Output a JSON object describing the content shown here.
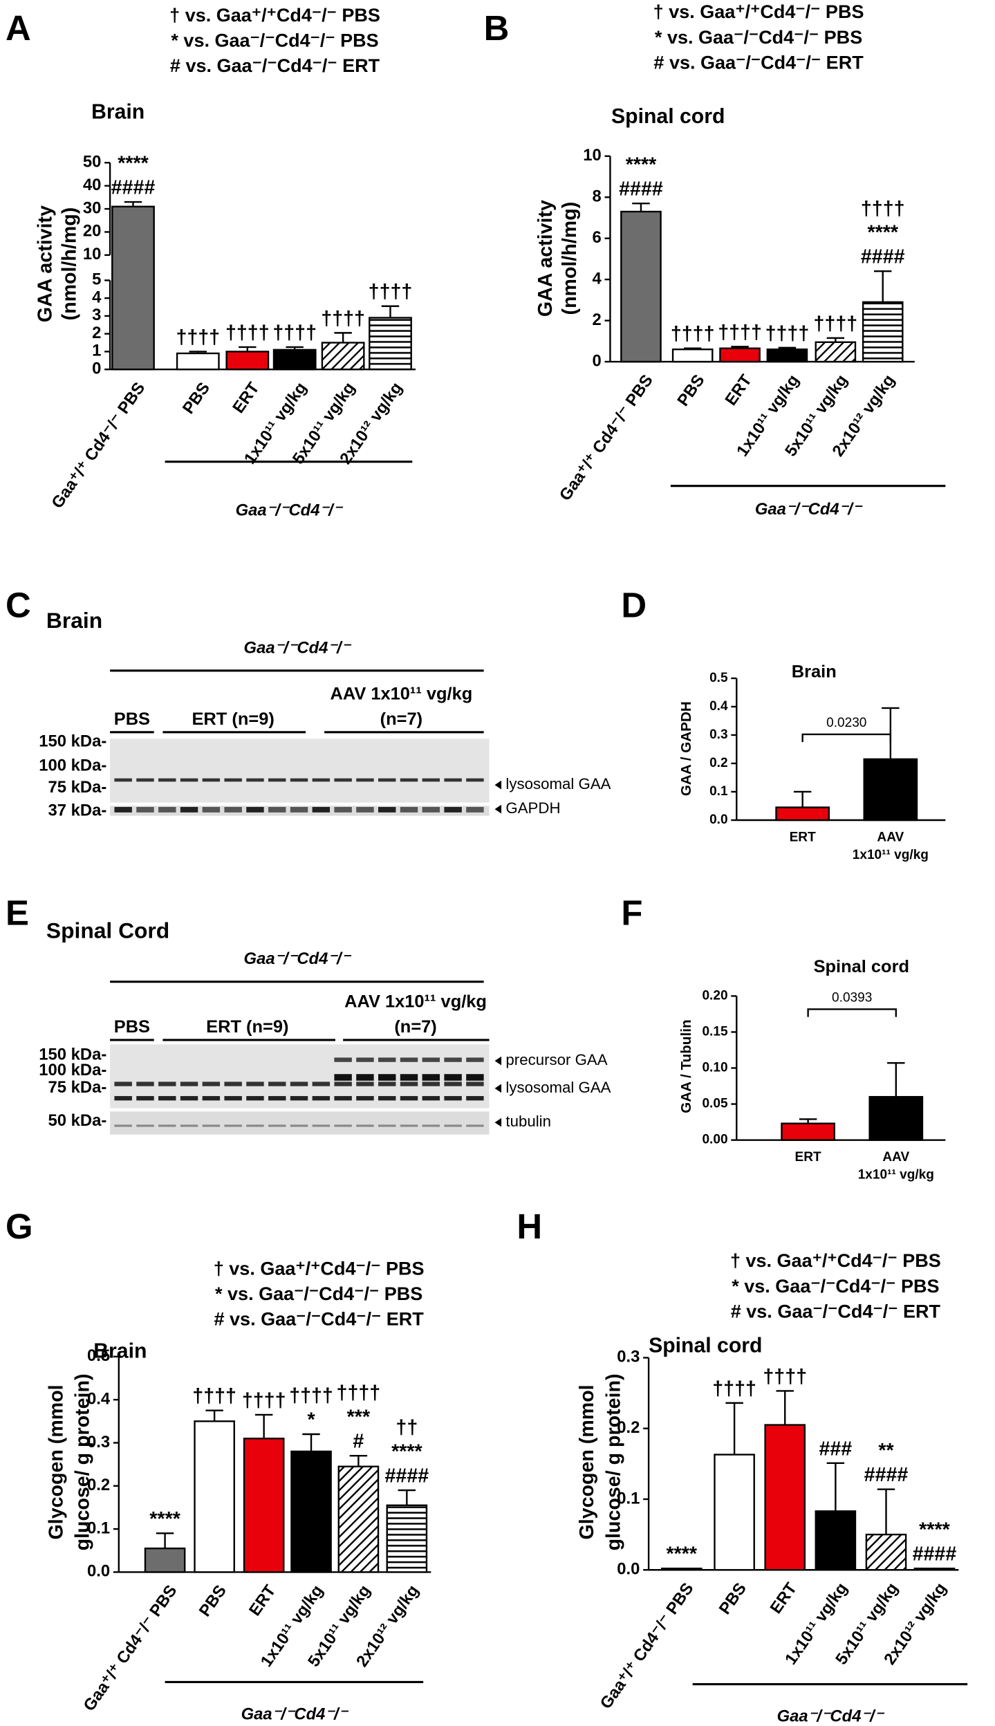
{
  "chart_data": [
    {
      "type": "bar",
      "panel": "A",
      "title": "Brain",
      "ylabel": [
        "GAA activity",
        "(nmol/h/mg)"
      ],
      "notes": [
        "† vs. Gaa⁺/⁺Cd4⁻/⁻ PBS",
        "* vs. Gaa⁻/⁻Cd4⁻/⁻ PBS",
        "# vs. Gaa⁻/⁻Cd4⁻/⁻ ERT"
      ],
      "categories": [
        "Gaa⁺/⁺ Cd4⁻/⁻ PBS",
        "PBS",
        "ERT",
        "1x10¹¹ vg/kg",
        "5x10¹¹ vg/kg",
        "2x10¹² vg/kg"
      ],
      "values": [
        31,
        0.9,
        1.0,
        1.1,
        1.5,
        2.9
      ],
      "errors": [
        2,
        0.1,
        0.25,
        0.15,
        0.55,
        0.65
      ],
      "fills": [
        "#6d6d6d",
        "#ffffff",
        "#e8000b",
        "#000000",
        "diagonal",
        "horizontal"
      ],
      "annotations": [
        [
          "****",
          "####"
        ],
        [
          "††††"
        ],
        [
          "††††"
        ],
        [
          "††††"
        ],
        [
          "††††"
        ],
        [
          "††††"
        ]
      ],
      "ylim": [
        0,
        50
      ],
      "ybreak": [
        5,
        10
      ],
      "yticks": [
        0,
        1,
        2,
        3,
        4,
        5,
        10,
        20,
        30,
        40,
        50
      ],
      "group_label": "Gaa⁻/⁻Cd4⁻/⁻"
    },
    {
      "type": "bar",
      "panel": "B",
      "title": "Spinal cord",
      "ylabel": [
        "GAA activity",
        "(nmol/h/mg)"
      ],
      "notes": [
        "† vs. Gaa⁺/⁺Cd4⁻/⁻ PBS",
        "* vs. Gaa⁻/⁻Cd4⁻/⁻ PBS",
        "# vs. Gaa⁻/⁻Cd4⁻/⁻ ERT"
      ],
      "categories": [
        "Gaa⁺/⁺ Cd4⁻/⁻ PBS",
        "PBS",
        "ERT",
        "1x10¹¹ vg/kg",
        "5x10¹¹ vg/kg",
        "2x10¹² vg/kg"
      ],
      "values": [
        7.3,
        0.6,
        0.65,
        0.6,
        0.95,
        2.9
      ],
      "errors": [
        0.4,
        0.05,
        0.08,
        0.08,
        0.2,
        1.5
      ],
      "fills": [
        "#6d6d6d",
        "#ffffff",
        "#e8000b",
        "#000000",
        "diagonal",
        "horizontal"
      ],
      "annotations": [
        [
          "****",
          "####"
        ],
        [
          "††††"
        ],
        [
          "††††"
        ],
        [
          "††††"
        ],
        [
          "††††"
        ],
        [
          "††††",
          "****",
          "####"
        ]
      ],
      "ylim": [
        0,
        10
      ],
      "yticks": [
        0,
        2,
        4,
        6,
        8,
        10
      ],
      "group_label": "Gaa⁻/⁻Cd4⁻/⁻"
    },
    {
      "type": "bar",
      "panel": "D",
      "title": "Brain",
      "ylabel": [
        "GAA / GAPDH"
      ],
      "categories": [
        [
          "ERT"
        ],
        [
          "AAV",
          "1x10¹¹ vg/kg"
        ]
      ],
      "values": [
        0.045,
        0.215
      ],
      "errors": [
        0.055,
        0.18
      ],
      "fills": [
        "#e8000b",
        "#000000"
      ],
      "comparison": "0.0230",
      "ylim": [
        0,
        0.5
      ],
      "yticks": [
        {
          "value": 0,
          "label": "0.0"
        },
        0.1,
        0.2,
        0.3,
        0.4,
        0.5
      ]
    },
    {
      "type": "bar",
      "panel": "F",
      "title": "Spinal cord",
      "ylabel": [
        "GAA / Tubulin"
      ],
      "categories": [
        [
          "ERT"
        ],
        [
          "AAV",
          "1x10¹¹ vg/kg"
        ]
      ],
      "values": [
        0.023,
        0.06
      ],
      "errors": [
        0.006,
        0.047
      ],
      "fills": [
        "#e8000b",
        "#000000"
      ],
      "comparison": "0.0393",
      "ylim": [
        0,
        0.2
      ],
      "yticks": [
        {
          "value": 0,
          "label": "0.00"
        },
        0.05,
        {
          "value": 0.1,
          "label": "0.10"
        },
        0.15,
        {
          "value": 0.2,
          "label": "0.20"
        }
      ]
    },
    {
      "type": "bar",
      "panel": "G",
      "title": "Brain",
      "ylabel": [
        "Glycogen (mmol",
        "glucose/ g protein)"
      ],
      "notes": [
        "† vs. Gaa⁺/⁺Cd4⁻/⁻ PBS",
        "* vs. Gaa⁻/⁻Cd4⁻/⁻ PBS",
        "# vs. Gaa⁻/⁻Cd4⁻/⁻ ERT"
      ],
      "categories": [
        "Gaa⁺/⁺ Cd4⁻/⁻ PBS",
        "PBS",
        "ERT",
        "1x10¹¹ vg/kg",
        "5x10¹¹ vg/kg",
        "2x10¹² vg/kg"
      ],
      "values": [
        0.055,
        0.35,
        0.31,
        0.28,
        0.245,
        0.155
      ],
      "errors": [
        0.035,
        0.025,
        0.055,
        0.04,
        0.025,
        0.035
      ],
      "fills": [
        "#6d6d6d",
        "#ffffff",
        "#e8000b",
        "#000000",
        "diagonal",
        "horizontal"
      ],
      "annotations": [
        [
          "****"
        ],
        [
          "††††"
        ],
        [
          "††††"
        ],
        [
          "††††",
          "*"
        ],
        [
          "††††",
          "***",
          "#"
        ],
        [
          "††",
          "****",
          "####"
        ]
      ],
      "ylim": [
        0,
        0.5
      ],
      "yticks": [
        {
          "value": 0,
          "label": "0.0"
        },
        0.1,
        0.2,
        0.3,
        0.4,
        0.5
      ],
      "group_label": "Gaa⁻/⁻Cd4⁻/⁻"
    },
    {
      "type": "bar",
      "panel": "H",
      "title": "Spinal cord",
      "ylabel": [
        "Glycogen (mmol",
        "glucose/ g protein)"
      ],
      "notes": [
        "† vs. Gaa⁺/⁺Cd4⁻/⁻ PBS",
        "* vs. Gaa⁻/⁻Cd4⁻/⁻ PBS",
        "# vs. Gaa⁻/⁻Cd4⁻/⁻ ERT"
      ],
      "categories": [
        "Gaa⁺/⁺ Cd4⁻/⁻ PBS",
        "PBS",
        "ERT",
        "1x10¹¹ vg/kg",
        "5x10¹¹ vg/kg",
        "2x10¹² vg/kg"
      ],
      "values": [
        0.002,
        0.163,
        0.205,
        0.083,
        0.05,
        0.002
      ],
      "errors": [
        0,
        0.073,
        0.048,
        0.068,
        0.064,
        0
      ],
      "fills": [
        "#6d6d6d",
        "#ffffff",
        "#e8000b",
        "#000000",
        "diagonal",
        "horizontal"
      ],
      "annotations": [
        [
          "****"
        ],
        [
          "††††"
        ],
        [
          "††††"
        ],
        [
          "###"
        ],
        [
          "**",
          "####"
        ],
        [
          "****",
          "####"
        ]
      ],
      "ylim": [
        0,
        0.3
      ],
      "yticks": [
        {
          "value": 0,
          "label": "0.0"
        },
        0.1,
        0.2,
        0.3
      ],
      "group_label": "Gaa⁻/⁻Cd4⁻/⁻"
    }
  ],
  "blots": [
    {
      "panel": "C",
      "title": "Brain",
      "group_label": "Gaa⁻/⁻Cd4⁻/⁻",
      "lane_groups": [
        [
          "PBS"
        ],
        [
          "ERT (n=9)"
        ],
        [
          "AAV 1x10¹¹ vg/kg",
          "(n=7)"
        ]
      ],
      "markers": [
        "150 kDa-",
        "100 kDa-",
        "75 kDa-",
        "37 kDa-"
      ],
      "bands": [
        "lysosomal GAA",
        "GAPDH"
      ]
    },
    {
      "panel": "E",
      "title": "Spinal Cord",
      "group_label": "Gaa⁻/⁻Cd4⁻/⁻",
      "lane_groups": [
        [
          "PBS"
        ],
        [
          "ERT (n=9)"
        ],
        [
          "AAV 1x10¹¹ vg/kg",
          "(n=7)"
        ]
      ],
      "markers": [
        "150 kDa-",
        "100 kDa-",
        "75 kDa-",
        "50 kDa-"
      ],
      "bands": [
        "precursor GAA",
        "lysosomal GAA",
        "tubulin"
      ]
    }
  ]
}
